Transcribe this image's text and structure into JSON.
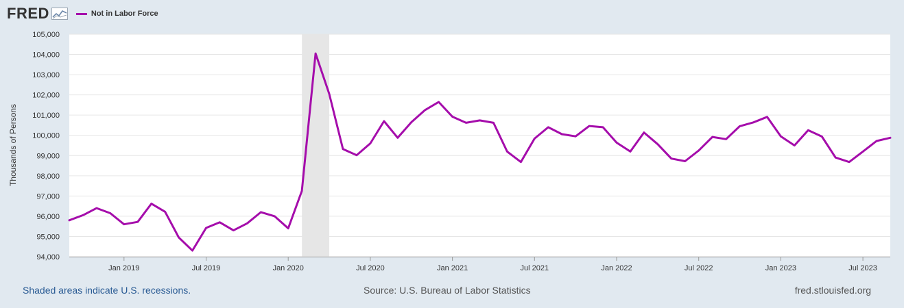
{
  "header": {
    "logo_text": "FRED",
    "logo_icon": "chart-trend-icon",
    "legend_label": "Not in Labor Force",
    "legend_color": "#a50dab"
  },
  "footer": {
    "recession_note": "Shaded areas indicate U.S. recessions.",
    "source": "Source: U.S. Bureau of Labor Statistics",
    "site": "fred.stlouisfed.org"
  },
  "colors": {
    "background": "#e1e9f0",
    "plot_background": "#ffffff",
    "gridline": "#e6e6e6",
    "recession_shade": "#e6e6e6",
    "series": "#a50dab"
  },
  "chart_data": {
    "type": "line",
    "title": "",
    "xlabel": "",
    "ylabel": "Thousands of Persons",
    "ylim": [
      94000,
      105000
    ],
    "xlim": [
      "2018-09",
      "2023-09"
    ],
    "y_ticks": [
      "94,000",
      "95,000",
      "96,000",
      "97,000",
      "98,000",
      "99,000",
      "100,000",
      "101,000",
      "102,000",
      "103,000",
      "104,000",
      "105,000"
    ],
    "y_tick_values": [
      94000,
      95000,
      96000,
      97000,
      98000,
      99000,
      100000,
      101000,
      102000,
      103000,
      104000,
      105000
    ],
    "x_ticks": [
      {
        "label": "Jan 2019",
        "date": "2019-01"
      },
      {
        "label": "Jul 2019",
        "date": "2019-07"
      },
      {
        "label": "Jan 2020",
        "date": "2020-01"
      },
      {
        "label": "Jul 2020",
        "date": "2020-07"
      },
      {
        "label": "Jan 2021",
        "date": "2021-01"
      },
      {
        "label": "Jul 2021",
        "date": "2021-07"
      },
      {
        "label": "Jan 2022",
        "date": "2022-01"
      },
      {
        "label": "Jul 2022",
        "date": "2022-07"
      },
      {
        "label": "Jan 2023",
        "date": "2023-01"
      },
      {
        "label": "Jul 2023",
        "date": "2023-07"
      }
    ],
    "recessions": [
      {
        "start": "2020-02",
        "end": "2020-04"
      }
    ],
    "grid": true,
    "legend_placement": "top-left",
    "series": [
      {
        "name": "Not in Labor Force",
        "color": "#a50dab",
        "x": [
          "2018-09",
          "2018-10",
          "2018-11",
          "2018-12",
          "2019-01",
          "2019-02",
          "2019-03",
          "2019-04",
          "2019-05",
          "2019-06",
          "2019-07",
          "2019-08",
          "2019-09",
          "2019-10",
          "2019-11",
          "2019-12",
          "2020-01",
          "2020-02",
          "2020-03",
          "2020-04",
          "2020-05",
          "2020-06",
          "2020-07",
          "2020-08",
          "2020-09",
          "2020-10",
          "2020-11",
          "2020-12",
          "2021-01",
          "2021-02",
          "2021-03",
          "2021-04",
          "2021-05",
          "2021-06",
          "2021-07",
          "2021-08",
          "2021-09",
          "2021-10",
          "2021-11",
          "2021-12",
          "2022-01",
          "2022-02",
          "2022-03",
          "2022-04",
          "2022-05",
          "2022-06",
          "2022-07",
          "2022-08",
          "2022-09",
          "2022-10",
          "2022-11",
          "2022-12",
          "2023-01",
          "2023-02",
          "2023-03",
          "2023-04",
          "2023-05",
          "2023-06",
          "2023-07",
          "2023-08",
          "2023-09"
        ],
        "values": [
          95800,
          96050,
          96400,
          96150,
          95600,
          95720,
          96620,
          96220,
          94950,
          94300,
          95420,
          95700,
          95300,
          95650,
          96200,
          96000,
          95400,
          97250,
          104050,
          102050,
          99320,
          99020,
          99600,
          100700,
          99880,
          100650,
          101250,
          101650,
          100920,
          100620,
          100740,
          100620,
          99200,
          98680,
          99840,
          100400,
          100060,
          99950,
          100460,
          100400,
          99640,
          99200,
          100140,
          99560,
          98850,
          98720,
          99250,
          99920,
          99810,
          100450,
          100640,
          100910,
          99950,
          99500,
          100250,
          99940,
          98900,
          98680,
          99200,
          99720,
          99880
        ]
      }
    ]
  }
}
